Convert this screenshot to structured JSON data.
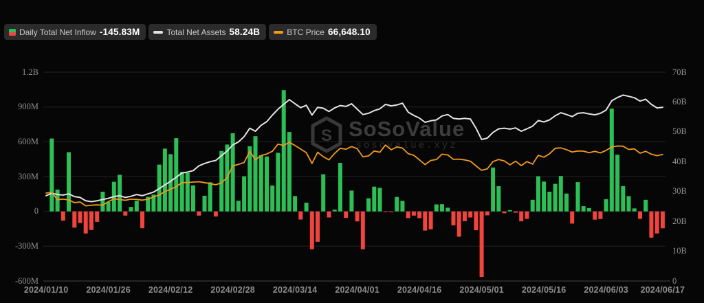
{
  "page": {
    "background": "#060606"
  },
  "legend": {
    "items": [
      {
        "label": "Daily Total Net Inflow",
        "value": "-145.83M",
        "icon": "inflow-split-square",
        "icon_color_top": "#2dbe56",
        "icon_color_bottom": "#f0443e"
      },
      {
        "label": "Total Net Assets",
        "value": "58.24B",
        "icon": "dash",
        "icon_color": "#e3e3e3"
      },
      {
        "label": "BTC Price",
        "value": "66,648.10",
        "icon": "dash",
        "icon_color": "#f39a1c"
      }
    ]
  },
  "watermark": {
    "title": "SoSoValue",
    "subtitle": "sosovalue.xyz",
    "logo": "cube-logo"
  },
  "chart_data": {
    "type": "combo-bar-line",
    "title": "",
    "grid": true,
    "legend_position": "top-left",
    "colors": {
      "bar_positive": "#2dbe56",
      "bar_negative": "#f0443e",
      "assets_line": "#e3e3e3",
      "price_line": "#f39a1c",
      "gridline": "#232323",
      "axis_line": "#464646"
    },
    "x": [
      "2024/01/10",
      "2024/01/11",
      "2024/01/12",
      "2024/01/16",
      "2024/01/17",
      "2024/01/18",
      "2024/01/19",
      "2024/01/22",
      "2024/01/23",
      "2024/01/24",
      "2024/01/25",
      "2024/01/26",
      "2024/01/29",
      "2024/01/30",
      "2024/01/31",
      "2024/02/01",
      "2024/02/02",
      "2024/02/05",
      "2024/02/06",
      "2024/02/07",
      "2024/02/08",
      "2024/02/09",
      "2024/02/12",
      "2024/02/13",
      "2024/02/14",
      "2024/02/15",
      "2024/02/16",
      "2024/02/20",
      "2024/02/21",
      "2024/02/22",
      "2024/02/23",
      "2024/02/26",
      "2024/02/27",
      "2024/02/28",
      "2024/02/29",
      "2024/03/01",
      "2024/03/04",
      "2024/03/05",
      "2024/03/06",
      "2024/03/07",
      "2024/03/08",
      "2024/03/11",
      "2024/03/12",
      "2024/03/13",
      "2024/03/14",
      "2024/03/15",
      "2024/03/18",
      "2024/03/19",
      "2024/03/20",
      "2024/03/21",
      "2024/03/22",
      "2024/03/25",
      "2024/03/26",
      "2024/03/27",
      "2024/03/28",
      "2024/04/01",
      "2024/04/02",
      "2024/04/03",
      "2024/04/04",
      "2024/04/05",
      "2024/04/08",
      "2024/04/09",
      "2024/04/10",
      "2024/04/11",
      "2024/04/12",
      "2024/04/15",
      "2024/04/16",
      "2024/04/17",
      "2024/04/18",
      "2024/04/19",
      "2024/04/22",
      "2024/04/23",
      "2024/04/24",
      "2024/04/25",
      "2024/04/26",
      "2024/04/29",
      "2024/04/30",
      "2024/05/01",
      "2024/05/02",
      "2024/05/03",
      "2024/05/06",
      "2024/05/07",
      "2024/05/08",
      "2024/05/09",
      "2024/05/10",
      "2024/05/13",
      "2024/05/14",
      "2024/05/15",
      "2024/05/16",
      "2024/05/17",
      "2024/05/20",
      "2024/05/21",
      "2024/05/22",
      "2024/05/23",
      "2024/05/24",
      "2024/05/28",
      "2024/05/29",
      "2024/05/30",
      "2024/05/31",
      "2024/06/03",
      "2024/06/04",
      "2024/06/05",
      "2024/06/06",
      "2024/06/07",
      "2024/06/10",
      "2024/06/11",
      "2024/06/12",
      "2024/06/13",
      "2024/06/14",
      "2024/06/17"
    ],
    "x_axis_labels": {
      "indices": [
        0,
        11,
        22,
        33,
        44,
        55,
        66,
        77,
        88,
        99,
        109
      ],
      "labels": [
        "2024/01/10",
        "2024/01/26",
        "2024/02/12",
        "2024/02/28",
        "2024/03/14",
        "2024/04/01",
        "2024/04/16",
        "2024/05/01",
        "2024/05/16",
        "2024/06/03",
        "2024/06/17"
      ]
    },
    "left_axis": {
      "unit": "USD (M)",
      "ticks": [
        "1.2B",
        "900M",
        "600M",
        "300M",
        "0",
        "-300M",
        "-600M"
      ],
      "max": 1200,
      "min": -600
    },
    "right_axis": {
      "unit": "USD (B)",
      "ticks": [
        "70B",
        "60B",
        "50B",
        "40B",
        "30B",
        "20B",
        "10B",
        "0"
      ],
      "max": 70,
      "min": 0
    },
    "price_axis": {
      "hidden": true,
      "max": 110000,
      "min": 0
    },
    "series": [
      {
        "name": "Daily Total Net Inflow",
        "type": "bar",
        "axis": "left",
        "unit": "M USD",
        "values": [
          null,
          628,
          188,
          -80,
          510,
          -140,
          -100,
          -190,
          -160,
          -90,
          170,
          82,
          255,
          315,
          -36,
          38,
          92,
          -145,
          126,
          145,
          403,
          541,
          493,
          631,
          340,
          330,
          224,
          -36,
          135,
          251,
          -44,
          520,
          576,
          673,
          92,
          303,
          562,
          648,
          483,
          473,
          223,
          505,
          1045,
          684,
          132,
          -70,
          75,
          -326,
          -262,
          320,
          -52,
          15,
          418,
          -55,
          179,
          -86,
          -326,
          113,
          213,
          203,
          -3,
          -5,
          124,
          91,
          -58,
          -36,
          -58,
          -165,
          -154,
          60,
          62,
          32,
          -120,
          -218,
          -84,
          -52,
          -162,
          -564,
          -34,
          378,
          217,
          -16,
          11,
          -11,
          -85,
          -64,
          100,
          303,
          257,
          170,
          237,
          305,
          154,
          -105,
          252,
          45,
          28,
          -71,
          -65,
          105,
          886,
          488,
          218,
          131,
          26,
          -65,
          100,
          -226,
          -190,
          -145.83
        ]
      },
      {
        "name": "Total Net Assets",
        "type": "line",
        "axis": "right",
        "unit": "B USD",
        "values": [
          28.6,
          29.4,
          29.0,
          28.8,
          29.2,
          28.3,
          28.0,
          26.9,
          26.6,
          26.9,
          27.3,
          27.7,
          28.3,
          28.6,
          28.0,
          28.4,
          29.0,
          28.6,
          29.2,
          29.8,
          31.0,
          32.2,
          33.4,
          34.8,
          36.2,
          36.5,
          37.0,
          38.6,
          39.4,
          40.0,
          40.4,
          42.0,
          43.6,
          45.6,
          46.6,
          48.4,
          51.2,
          50.2,
          52.2,
          53.4,
          55.6,
          57.6,
          59.2,
          60.8,
          59.4,
          58.1,
          58.9,
          55.6,
          58.2,
          57.9,
          56.8,
          58.0,
          58.8,
          58.5,
          59.4,
          57.6,
          55.8,
          56.2,
          57.1,
          57.7,
          59.2,
          58.7,
          59.0,
          59.6,
          56.6,
          55.5,
          54.6,
          53.2,
          53.7,
          54.0,
          55.3,
          55.8,
          54.5,
          54.3,
          54.5,
          54.3,
          51.2,
          47.4,
          47.9,
          49.8,
          51.0,
          51.2,
          50.9,
          51.3,
          50.2,
          51.0,
          51.9,
          53.8,
          53.3,
          54.0,
          55.4,
          56.4,
          55.8,
          55.1,
          56.2,
          56.4,
          56.0,
          55.7,
          56.2,
          57.3,
          60.4,
          61.5,
          62.3,
          61.9,
          61.4,
          60.3,
          60.9,
          59.2,
          58.0,
          58.24
        ]
      },
      {
        "name": "BTC Price",
        "type": "line",
        "axis": "price",
        "unit": "USD",
        "values": [
          46300,
          46600,
          42800,
          43100,
          42700,
          41300,
          41600,
          39600,
          39900,
          40100,
          39950,
          41800,
          43300,
          42900,
          42500,
          43100,
          43000,
          42600,
          43100,
          44300,
          45300,
          47100,
          48300,
          49700,
          51800,
          51900,
          52100,
          52300,
          51800,
          51300,
          50700,
          51700,
          54500,
          60600,
          61400,
          62400,
          68300,
          63800,
          66100,
          66900,
          68300,
          72100,
          71400,
          73100,
          71400,
          69500,
          67600,
          61900,
          67800,
          65500,
          63800,
          67200,
          69900,
          69400,
          70800,
          69700,
          65400,
          65900,
          68500,
          67800,
          71600,
          69100,
          70600,
          70000,
          67100,
          66200,
          63800,
          61300,
          63500,
          64000,
          66800,
          66400,
          64100,
          64200,
          63800,
          63100,
          60600,
          58300,
          59100,
          62900,
          64000,
          63200,
          61200,
          63100,
          60800,
          62900,
          61600,
          66200,
          65200,
          67000,
          69900,
          70100,
          69200,
          67900,
          68500,
          68400,
          67600,
          68300,
          67500,
          68800,
          70600,
          71100,
          71000,
          69300,
          69600,
          67300,
          68300,
          66800,
          66000,
          66648.1
        ]
      }
    ]
  }
}
